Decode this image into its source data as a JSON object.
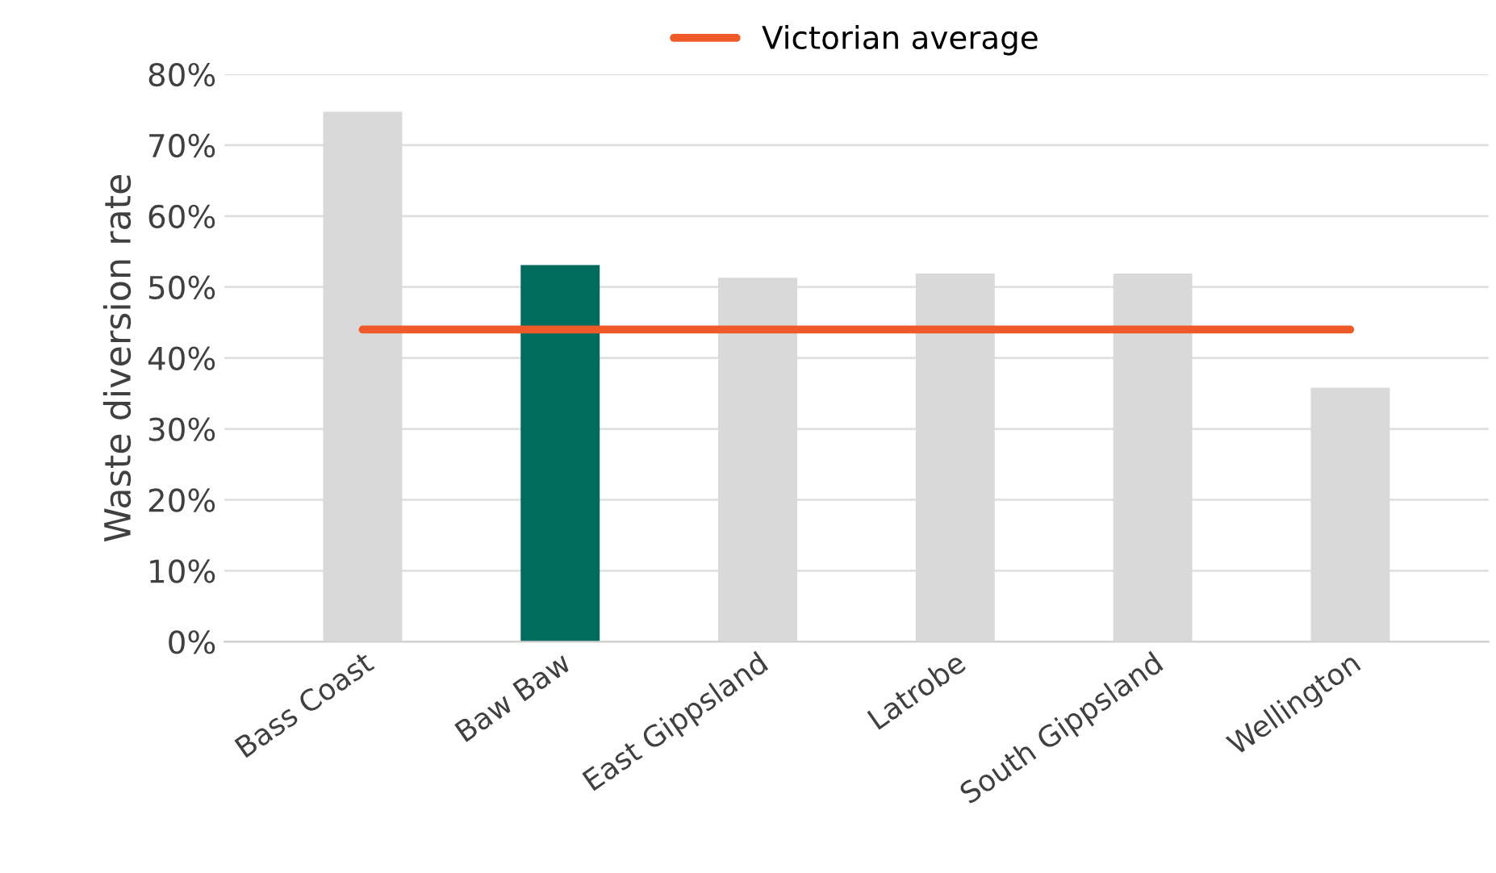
{
  "chart_data": {
    "type": "bar",
    "ylabel": "Waste diversion rate",
    "categories": [
      "Bass Coast",
      "Baw Baw",
      "East Gippsland",
      "Latrobe",
      "South Gippsland",
      "Wellington"
    ],
    "series": [
      {
        "colors": [
          "#d9d9d9",
          "#006b5f",
          "#d9d9d9",
          "#d9d9d9",
          "#d9d9d9",
          "#d9d9d9"
        ],
        "values": [
          74.7,
          53.1,
          51.3,
          51.9,
          51.9,
          35.8
        ]
      },
      {
        "type": "line",
        "name": "Victorian average",
        "color": "#f05a28",
        "values": [
          44,
          44,
          44,
          44,
          44,
          44
        ]
      }
    ],
    "ylim": [
      0,
      80
    ],
    "yticks": [
      {
        "value": 0,
        "label": "0%"
      },
      {
        "value": 10,
        "label": "10%"
      },
      {
        "value": 20,
        "label": "20%"
      },
      {
        "value": 30,
        "label": "30%"
      },
      {
        "value": 40,
        "label": "40%"
      },
      {
        "value": 50,
        "label": "50%"
      },
      {
        "value": 60,
        "label": "60%"
      },
      {
        "value": 70,
        "label": "70%"
      },
      {
        "value": 80,
        "label": "80%"
      }
    ],
    "grid": "y",
    "legend": "top",
    "marker": "none",
    "line_style": "solid"
  }
}
